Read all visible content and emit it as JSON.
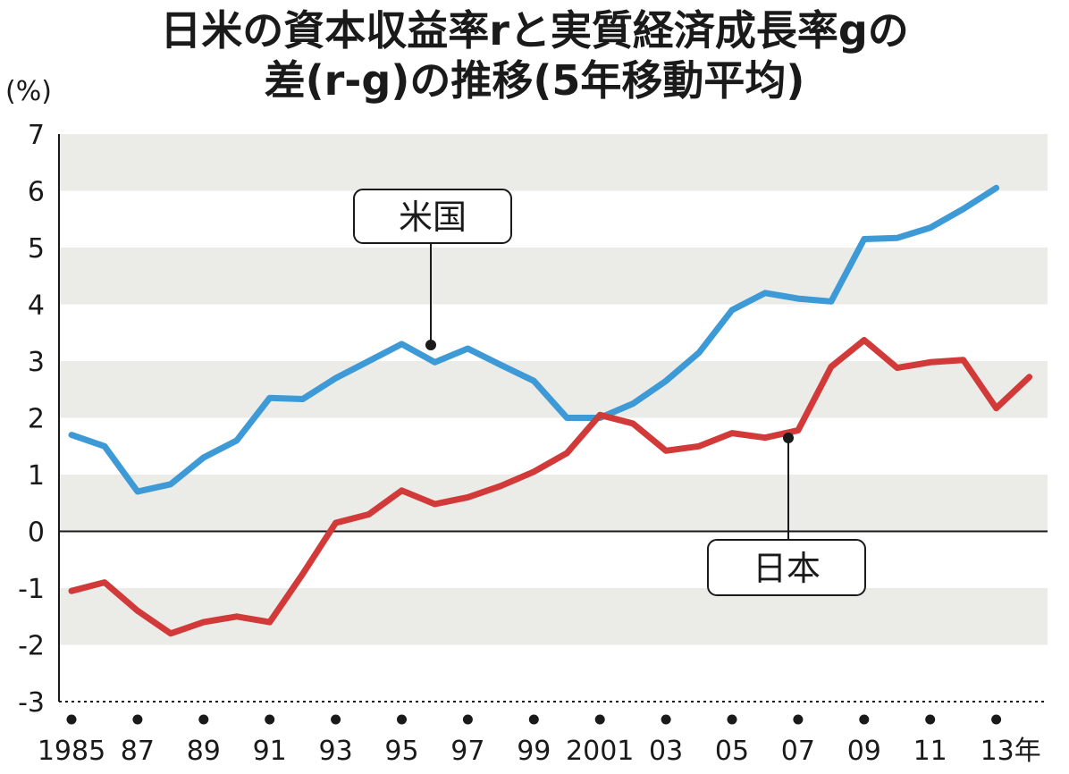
{
  "chart_data": {
    "type": "line",
    "title_lines": [
      "日米の資本収益率rと実質経済成長率gの",
      "差(r-g)の推移(5年移動平均)"
    ],
    "y_unit": "(%)",
    "ylim": [
      -3,
      7
    ],
    "y_ticks": [
      "7",
      "6",
      "5",
      "4",
      "3",
      "2",
      "1",
      "0",
      "-1",
      "-2",
      "-3"
    ],
    "x_tick_labels": [
      "1985",
      "87",
      "89",
      "91",
      "93",
      "95",
      "97",
      "99",
      "2001",
      "03",
      "05",
      "07",
      "09",
      "11",
      "13年"
    ],
    "x": [
      1985,
      1986,
      1987,
      1988,
      1989,
      1990,
      1991,
      1992,
      1993,
      1994,
      1995,
      1996,
      1997,
      1998,
      1999,
      2000,
      2001,
      2002,
      2003,
      2004,
      2005,
      2006,
      2007,
      2008,
      2009,
      2010,
      2011,
      2012,
      2013,
      2014
    ],
    "series": [
      {
        "name": "米国",
        "color": "#3d9ad6",
        "values": [
          1.7,
          1.5,
          0.7,
          0.83,
          1.3,
          1.6,
          2.35,
          2.33,
          2.7,
          3.0,
          3.3,
          2.98,
          3.22,
          2.93,
          2.65,
          2.0,
          2.0,
          2.25,
          2.65,
          3.15,
          3.9,
          4.2,
          4.1,
          4.05,
          5.15,
          5.17,
          5.35,
          5.68,
          6.05,
          null
        ]
      },
      {
        "name": "日本",
        "color": "#d23a3a",
        "values": [
          -1.05,
          -0.9,
          -1.4,
          -1.8,
          -1.6,
          -1.5,
          -1.6,
          -0.75,
          0.15,
          0.3,
          0.72,
          0.48,
          0.6,
          0.8,
          1.05,
          1.38,
          2.05,
          1.9,
          1.42,
          1.5,
          1.73,
          1.65,
          1.78,
          2.9,
          3.37,
          2.88,
          2.98,
          3.02,
          2.17,
          2.72
        ]
      }
    ],
    "grid": "alternating horizontal bands",
    "legend": "callout labels"
  }
}
